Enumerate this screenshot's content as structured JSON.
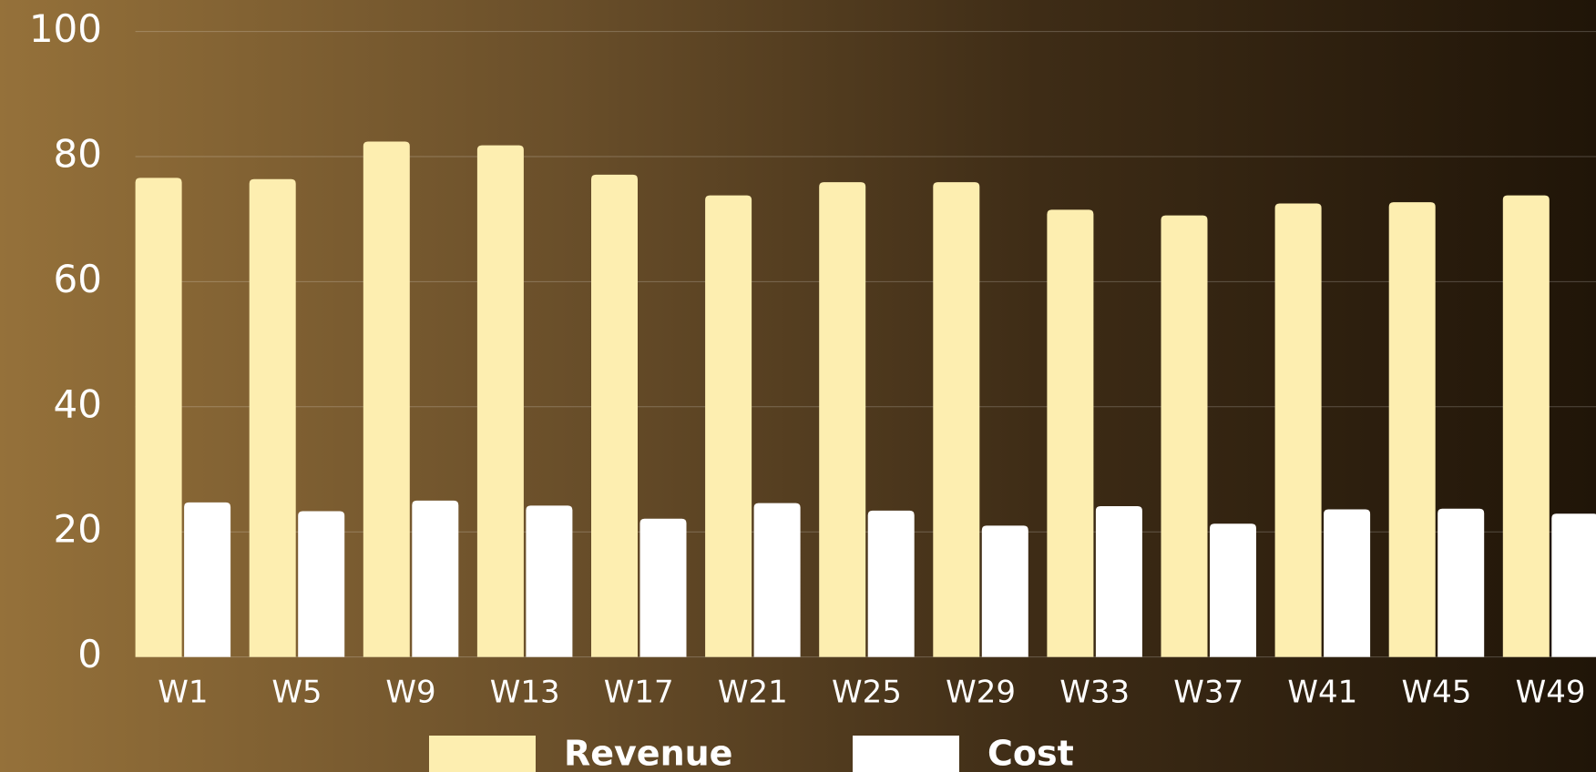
{
  "chart_data": {
    "type": "bar",
    "categories": [
      "W1",
      "W5",
      "W9",
      "W13",
      "W17",
      "W21",
      "W25",
      "W29",
      "W33",
      "W37",
      "W41",
      "W45",
      "W49"
    ],
    "series": [
      {
        "name": "Revenue",
        "color": "#fdeeb0",
        "values": [
          76.6,
          76.4,
          82.4,
          81.8,
          77.1,
          73.8,
          75.9,
          75.9,
          71.5,
          70.6,
          72.5,
          72.7,
          73.8
        ]
      },
      {
        "name": "Cost",
        "color": "#ffffff",
        "values": [
          24.7,
          23.3,
          25.0,
          24.2,
          22.1,
          24.6,
          23.4,
          21.0,
          24.1,
          21.3,
          23.6,
          23.7,
          22.9
        ]
      }
    ],
    "ylim": [
      0,
      100
    ],
    "yticks": [
      0,
      20,
      40,
      60,
      80,
      100
    ],
    "grid": true,
    "legend": "bottom"
  }
}
